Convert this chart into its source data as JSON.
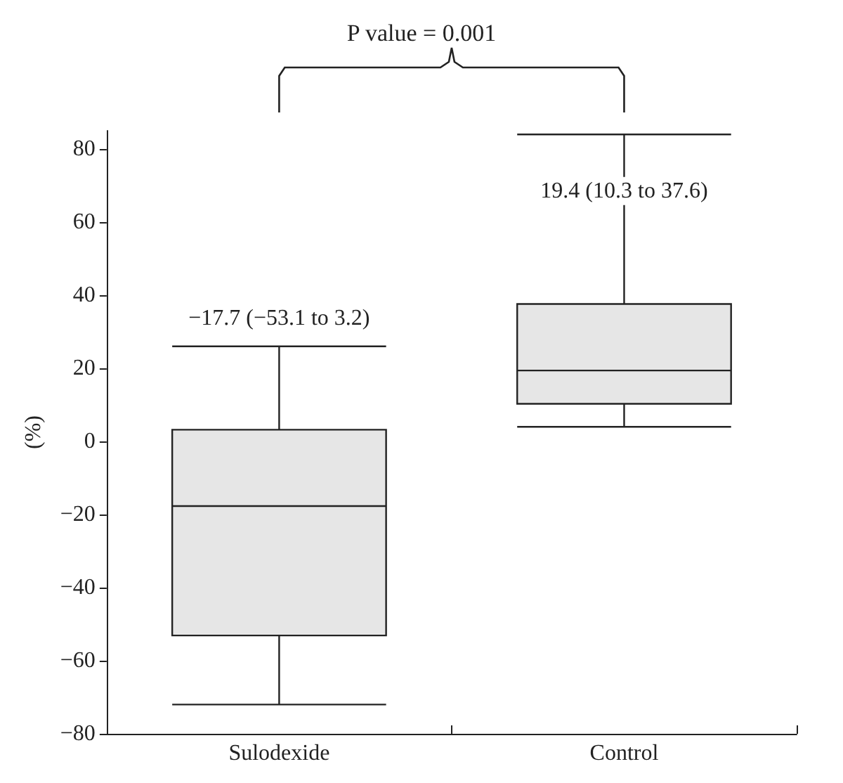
{
  "chart_data": {
    "type": "box",
    "title": "P value = 0.001",
    "ylabel": "(%)",
    "categories": [
      "Sulodexide",
      "Control"
    ],
    "boxes": [
      {
        "low": -72,
        "q1": -53.1,
        "median": -17.7,
        "q3": 3.2,
        "high": 26
      },
      {
        "low": 4,
        "q1": 10.3,
        "median": 19.4,
        "q3": 37.6,
        "high": 84
      }
    ],
    "color": "#e6e6e6",
    "annotations": [
      "−17.7 (−53.1 to 3.2)",
      "19.4 (10.3 to 37.6)"
    ],
    "ylim": [
      -80,
      85
    ],
    "yticks": [
      -80,
      -60,
      -40,
      -20,
      0,
      20,
      40,
      60,
      80
    ],
    "grid": false
  }
}
